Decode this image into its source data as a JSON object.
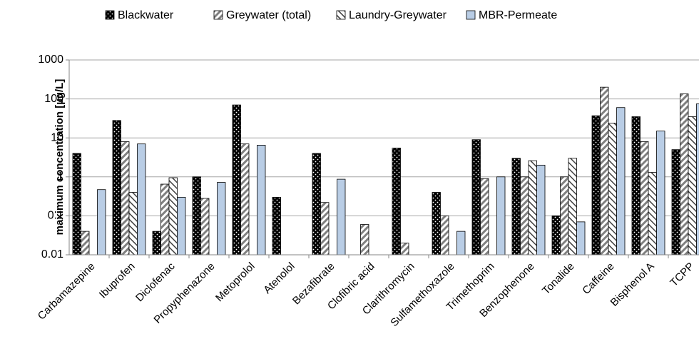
{
  "chart_data": {
    "type": "bar",
    "log_scale": true,
    "grid": true,
    "y_label": "maximum concentration [µg/L]",
    "categories": [
      "Carbamazepine",
      "Ibuprofen",
      "Diclofenac",
      "Propyphenazone",
      "Metoprolol",
      "Atenolol",
      "Bezafibrate",
      "Clofibric acid",
      "Clarithromycin",
      "Sulfamethoxazole",
      "Trimethoprim",
      "Benzophenone",
      "Tonalide",
      "Caffeine",
      "Bisphenol A",
      "TCPP"
    ],
    "series": [
      {
        "name": "Blackwater",
        "color": "#000000",
        "values": [
          4,
          28,
          0.04,
          1,
          70,
          0.3,
          4,
          null,
          5.5,
          0.4,
          9,
          3,
          0.1,
          37,
          35,
          5
        ]
      },
      {
        "name": "Greywater (total)",
        "color": "#808080",
        "values": [
          0.04,
          8,
          0.65,
          0.28,
          7,
          null,
          0.22,
          0.06,
          0.02,
          0.1,
          0.9,
          1,
          1,
          200,
          8,
          135
        ]
      },
      {
        "name": "Laundry-Greywater",
        "color": "#404040",
        "values": [
          null,
          0.4,
          0.95,
          null,
          null,
          null,
          null,
          null,
          null,
          null,
          null,
          2.6,
          3,
          24,
          1.3,
          35
        ]
      },
      {
        "name": "MBR-Permeate",
        "color": "#b9cde5",
        "values": [
          0.47,
          7,
          0.3,
          0.72,
          6.5,
          null,
          0.87,
          null,
          null,
          0.04,
          1,
          2,
          0.07,
          60,
          15,
          75
        ]
      }
    ],
    "ylim": [
      0.01,
      1000
    ],
    "yticks": [
      0.01,
      0.1,
      1,
      10,
      100,
      1000
    ]
  }
}
